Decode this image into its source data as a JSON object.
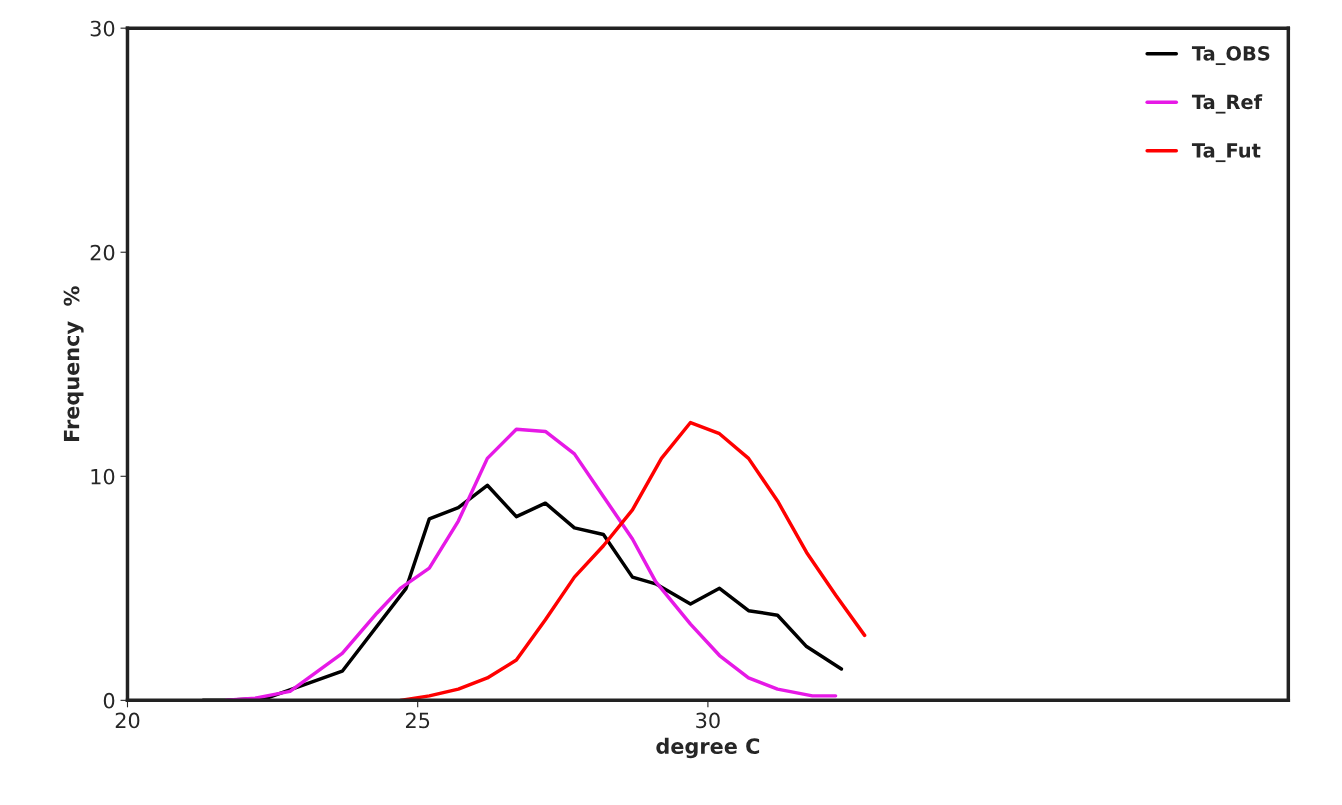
{
  "chart_data": {
    "type": "line",
    "xlabel": "degree C",
    "ylabel": "Frequency  %",
    "xlim": [
      20,
      40
    ],
    "xticks": [
      20,
      25,
      30
    ],
    "ylim": [
      0,
      30
    ],
    "yticks": [
      0,
      10,
      20,
      30
    ],
    "grid": false,
    "legend": "top right",
    "marker": "none",
    "line_style": "solid",
    "series": [
      {
        "name": "Ta_OBS",
        "color": "#000000",
        "x": [
          21.3,
          21.7,
          22.4,
          23.7,
          24.8,
          25.2,
          25.7,
          26.2,
          26.7,
          27.2,
          27.7,
          28.2,
          28.7,
          29.1,
          29.7,
          30.2,
          30.7,
          31.2,
          31.7,
          32.3
        ],
        "values": [
          0,
          0,
          0.1,
          1.3,
          5.0,
          8.1,
          8.6,
          9.6,
          8.2,
          8.8,
          7.7,
          7.4,
          5.5,
          5.2,
          4.3,
          5.0,
          4.0,
          3.8,
          2.4,
          1.4
        ]
      },
      {
        "name": "Ta_Ref",
        "color": "#e619e6",
        "x": [
          21.7,
          22.2,
          22.8,
          23.7,
          24.3,
          24.7,
          25.2,
          25.7,
          26.2,
          26.7,
          27.2,
          27.7,
          28.2,
          28.7,
          29.1,
          29.7,
          30.2,
          30.7,
          31.2,
          31.8,
          32.2
        ],
        "values": [
          0,
          0.1,
          0.4,
          2.1,
          3.9,
          5.0,
          5.9,
          8.0,
          10.8,
          12.1,
          12.0,
          11.0,
          9.1,
          7.2,
          5.3,
          3.4,
          2.0,
          1.0,
          0.5,
          0.2,
          0.2
        ]
      },
      {
        "name": "Ta_Fut",
        "color": "#ff0000",
        "x": [
          24.7,
          25.2,
          25.7,
          26.2,
          26.7,
          27.2,
          27.7,
          28.2,
          28.7,
          29.2,
          29.7,
          30.2,
          30.7,
          31.2,
          31.7,
          32.2,
          32.7
        ],
        "values": [
          0,
          0.2,
          0.5,
          1.0,
          1.8,
          3.6,
          5.5,
          6.9,
          8.5,
          10.8,
          12.4,
          11.9,
          10.8,
          8.9,
          6.6,
          4.7,
          2.9
        ]
      }
    ]
  }
}
